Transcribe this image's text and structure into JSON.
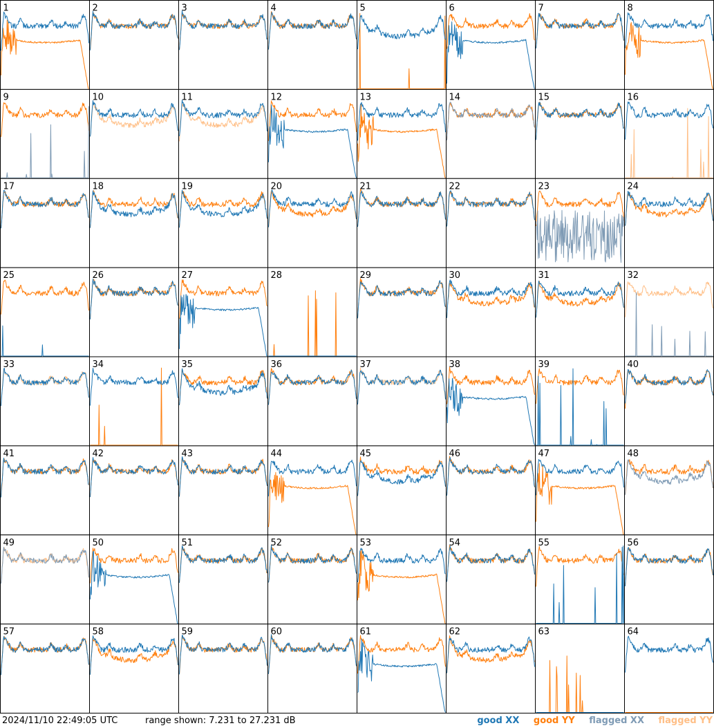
{
  "footer": {
    "timestamp": "2024/11/10 22:49:05 UTC",
    "range": "range shown: 7.231 to 27.231 dB"
  },
  "legend": [
    {
      "label": "good XX",
      "color": "#1f77b4"
    },
    {
      "label": "good YY",
      "color": "#ff7f0e"
    },
    {
      "label": "flagged XX",
      "color": "#7f9bb5"
    },
    {
      "label": "flagged YY",
      "color": "#ffbf87"
    }
  ],
  "chart_data": {
    "type": "line",
    "grid": {
      "rows": 8,
      "cols": 8
    },
    "ylim": [
      7.231,
      27.231
    ],
    "yunit": "dB",
    "panels": [
      {
        "id": "1",
        "xx": "good",
        "yy": "good",
        "xx_shape": "normal",
        "yy_shape": "drop"
      },
      {
        "id": "2",
        "xx": "good",
        "yy": "good",
        "xx_shape": "normal",
        "yy_shape": "normal"
      },
      {
        "id": "3",
        "xx": "good",
        "yy": "good",
        "xx_shape": "normal",
        "yy_shape": "normal"
      },
      {
        "id": "4",
        "xx": "good",
        "yy": "good",
        "xx_shape": "normal",
        "yy_shape": "normal"
      },
      {
        "id": "5",
        "xx": "good",
        "yy": "good",
        "xx_shape": "low",
        "yy_shape": "spikes"
      },
      {
        "id": "6",
        "xx": "good",
        "yy": "good",
        "xx_shape": "drop",
        "yy_shape": "normal"
      },
      {
        "id": "7",
        "xx": "good",
        "yy": "good",
        "xx_shape": "normal",
        "yy_shape": "normal"
      },
      {
        "id": "8",
        "xx": "good",
        "yy": "good",
        "xx_shape": "normal",
        "yy_shape": "drop"
      },
      {
        "id": "9",
        "xx": "flagged",
        "yy": "good",
        "xx_shape": "spikes",
        "yy_shape": "normal"
      },
      {
        "id": "10",
        "xx": "good",
        "yy": "flagged",
        "xx_shape": "normal",
        "yy_shape": "low"
      },
      {
        "id": "11",
        "xx": "good",
        "yy": "flagged",
        "xx_shape": "normal",
        "yy_shape": "low"
      },
      {
        "id": "12",
        "xx": "good",
        "yy": "good",
        "xx_shape": "drop",
        "yy_shape": "normal"
      },
      {
        "id": "13",
        "xx": "good",
        "yy": "good",
        "xx_shape": "normal",
        "yy_shape": "drop"
      },
      {
        "id": "14",
        "xx": "flagged",
        "yy": "good",
        "xx_shape": "normal",
        "yy_shape": "normal"
      },
      {
        "id": "15",
        "xx": "good",
        "yy": "good",
        "xx_shape": "normal",
        "yy_shape": "normal"
      },
      {
        "id": "16",
        "xx": "good",
        "yy": "flagged",
        "xx_shape": "normal",
        "yy_shape": "spikes"
      },
      {
        "id": "17",
        "xx": "good",
        "yy": "good",
        "xx_shape": "normal",
        "yy_shape": "normal"
      },
      {
        "id": "18",
        "xx": "good",
        "yy": "good",
        "xx_shape": "low",
        "yy_shape": "normal"
      },
      {
        "id": "19",
        "xx": "good",
        "yy": "good",
        "xx_shape": "low",
        "yy_shape": "normal"
      },
      {
        "id": "20",
        "xx": "good",
        "yy": "good",
        "xx_shape": "normal",
        "yy_shape": "low"
      },
      {
        "id": "21",
        "xx": "good",
        "yy": "good",
        "xx_shape": "normal",
        "yy_shape": "normal"
      },
      {
        "id": "22",
        "xx": "good",
        "yy": "good",
        "xx_shape": "normal",
        "yy_shape": "normal"
      },
      {
        "id": "23",
        "xx": "flagged",
        "yy": "good",
        "xx_shape": "noise",
        "yy_shape": "normal"
      },
      {
        "id": "24",
        "xx": "good",
        "yy": "good",
        "xx_shape": "normal",
        "yy_shape": "low"
      },
      {
        "id": "25",
        "xx": "good",
        "yy": "good",
        "xx_shape": "spikes",
        "yy_shape": "normal"
      },
      {
        "id": "26",
        "xx": "good",
        "yy": "good",
        "xx_shape": "normal",
        "yy_shape": "normal"
      },
      {
        "id": "27",
        "xx": "good",
        "yy": "good",
        "xx_shape": "drop",
        "yy_shape": "normal"
      },
      {
        "id": "28",
        "xx": "good",
        "yy": "good",
        "xx_shape": "dead",
        "yy_shape": "spikes"
      },
      {
        "id": "29",
        "xx": "good",
        "yy": "good",
        "xx_shape": "normal",
        "yy_shape": "normal"
      },
      {
        "id": "30",
        "xx": "good",
        "yy": "good",
        "xx_shape": "normal",
        "yy_shape": "low"
      },
      {
        "id": "31",
        "xx": "good",
        "yy": "good",
        "xx_shape": "normal",
        "yy_shape": "low"
      },
      {
        "id": "32",
        "xx": "flagged",
        "yy": "flagged",
        "xx_shape": "spikes",
        "yy_shape": "normal"
      },
      {
        "id": "33",
        "xx": "good",
        "yy": "flagged",
        "xx_shape": "normal",
        "yy_shape": "normal"
      },
      {
        "id": "34",
        "xx": "good",
        "yy": "good",
        "xx_shape": "normal",
        "yy_shape": "spikes"
      },
      {
        "id": "35",
        "xx": "good",
        "yy": "good",
        "xx_shape": "low",
        "yy_shape": "normal"
      },
      {
        "id": "36",
        "xx": "good",
        "yy": "good",
        "xx_shape": "normal",
        "yy_shape": "normal"
      },
      {
        "id": "37",
        "xx": "good",
        "yy": "flagged",
        "xx_shape": "normal",
        "yy_shape": "normal"
      },
      {
        "id": "38",
        "xx": "good",
        "yy": "good",
        "xx_shape": "drop",
        "yy_shape": "normal"
      },
      {
        "id": "39",
        "xx": "good",
        "yy": "good",
        "xx_shape": "spikes",
        "yy_shape": "normal"
      },
      {
        "id": "40",
        "xx": "good",
        "yy": "good",
        "xx_shape": "normal",
        "yy_shape": "normal"
      },
      {
        "id": "41",
        "xx": "good",
        "yy": "good",
        "xx_shape": "normal",
        "yy_shape": "normal"
      },
      {
        "id": "42",
        "xx": "good",
        "yy": "good",
        "xx_shape": "normal",
        "yy_shape": "normal"
      },
      {
        "id": "43",
        "xx": "good",
        "yy": "good",
        "xx_shape": "normal",
        "yy_shape": "normal"
      },
      {
        "id": "44",
        "xx": "good",
        "yy": "good",
        "xx_shape": "normal",
        "yy_shape": "drop"
      },
      {
        "id": "45",
        "xx": "good",
        "yy": "good",
        "xx_shape": "low",
        "yy_shape": "normal"
      },
      {
        "id": "46",
        "xx": "good",
        "yy": "good",
        "xx_shape": "normal",
        "yy_shape": "normal"
      },
      {
        "id": "47",
        "xx": "good",
        "yy": "good",
        "xx_shape": "normal",
        "yy_shape": "drop"
      },
      {
        "id": "48",
        "xx": "flagged",
        "yy": "good",
        "xx_shape": "low",
        "yy_shape": "normal"
      },
      {
        "id": "49",
        "xx": "flagged",
        "yy": "flagged",
        "xx_shape": "normal",
        "yy_shape": "normal"
      },
      {
        "id": "50",
        "xx": "good",
        "yy": "good",
        "xx_shape": "drop",
        "yy_shape": "normal"
      },
      {
        "id": "51",
        "xx": "good",
        "yy": "good",
        "xx_shape": "normal",
        "yy_shape": "normal"
      },
      {
        "id": "52",
        "xx": "good",
        "yy": "good",
        "xx_shape": "normal",
        "yy_shape": "normal"
      },
      {
        "id": "53",
        "xx": "good",
        "yy": "good",
        "xx_shape": "normal",
        "yy_shape": "drop"
      },
      {
        "id": "54",
        "xx": "good",
        "yy": "good",
        "xx_shape": "normal",
        "yy_shape": "normal"
      },
      {
        "id": "55",
        "xx": "good",
        "yy": "good",
        "xx_shape": "spikes",
        "yy_shape": "normal"
      },
      {
        "id": "56",
        "xx": "good",
        "yy": "good",
        "xx_shape": "normal",
        "yy_shape": "normal"
      },
      {
        "id": "57",
        "xx": "good",
        "yy": "good",
        "xx_shape": "normal",
        "yy_shape": "normal"
      },
      {
        "id": "58",
        "xx": "good",
        "yy": "good",
        "xx_shape": "normal",
        "yy_shape": "low"
      },
      {
        "id": "59",
        "xx": "good",
        "yy": "good",
        "xx_shape": "normal",
        "yy_shape": "normal"
      },
      {
        "id": "60",
        "xx": "good",
        "yy": "good",
        "xx_shape": "normal",
        "yy_shape": "normal"
      },
      {
        "id": "61",
        "xx": "good",
        "yy": "good",
        "xx_shape": "drop",
        "yy_shape": "normal"
      },
      {
        "id": "62",
        "xx": "good",
        "yy": "good",
        "xx_shape": "normal",
        "yy_shape": "low"
      },
      {
        "id": "63",
        "xx": "good",
        "yy": "good",
        "xx_shape": "dead",
        "yy_shape": "spikes"
      },
      {
        "id": "64",
        "xx": "good",
        "yy": "good",
        "xx_shape": "normal",
        "yy_shape": "dead"
      }
    ]
  }
}
